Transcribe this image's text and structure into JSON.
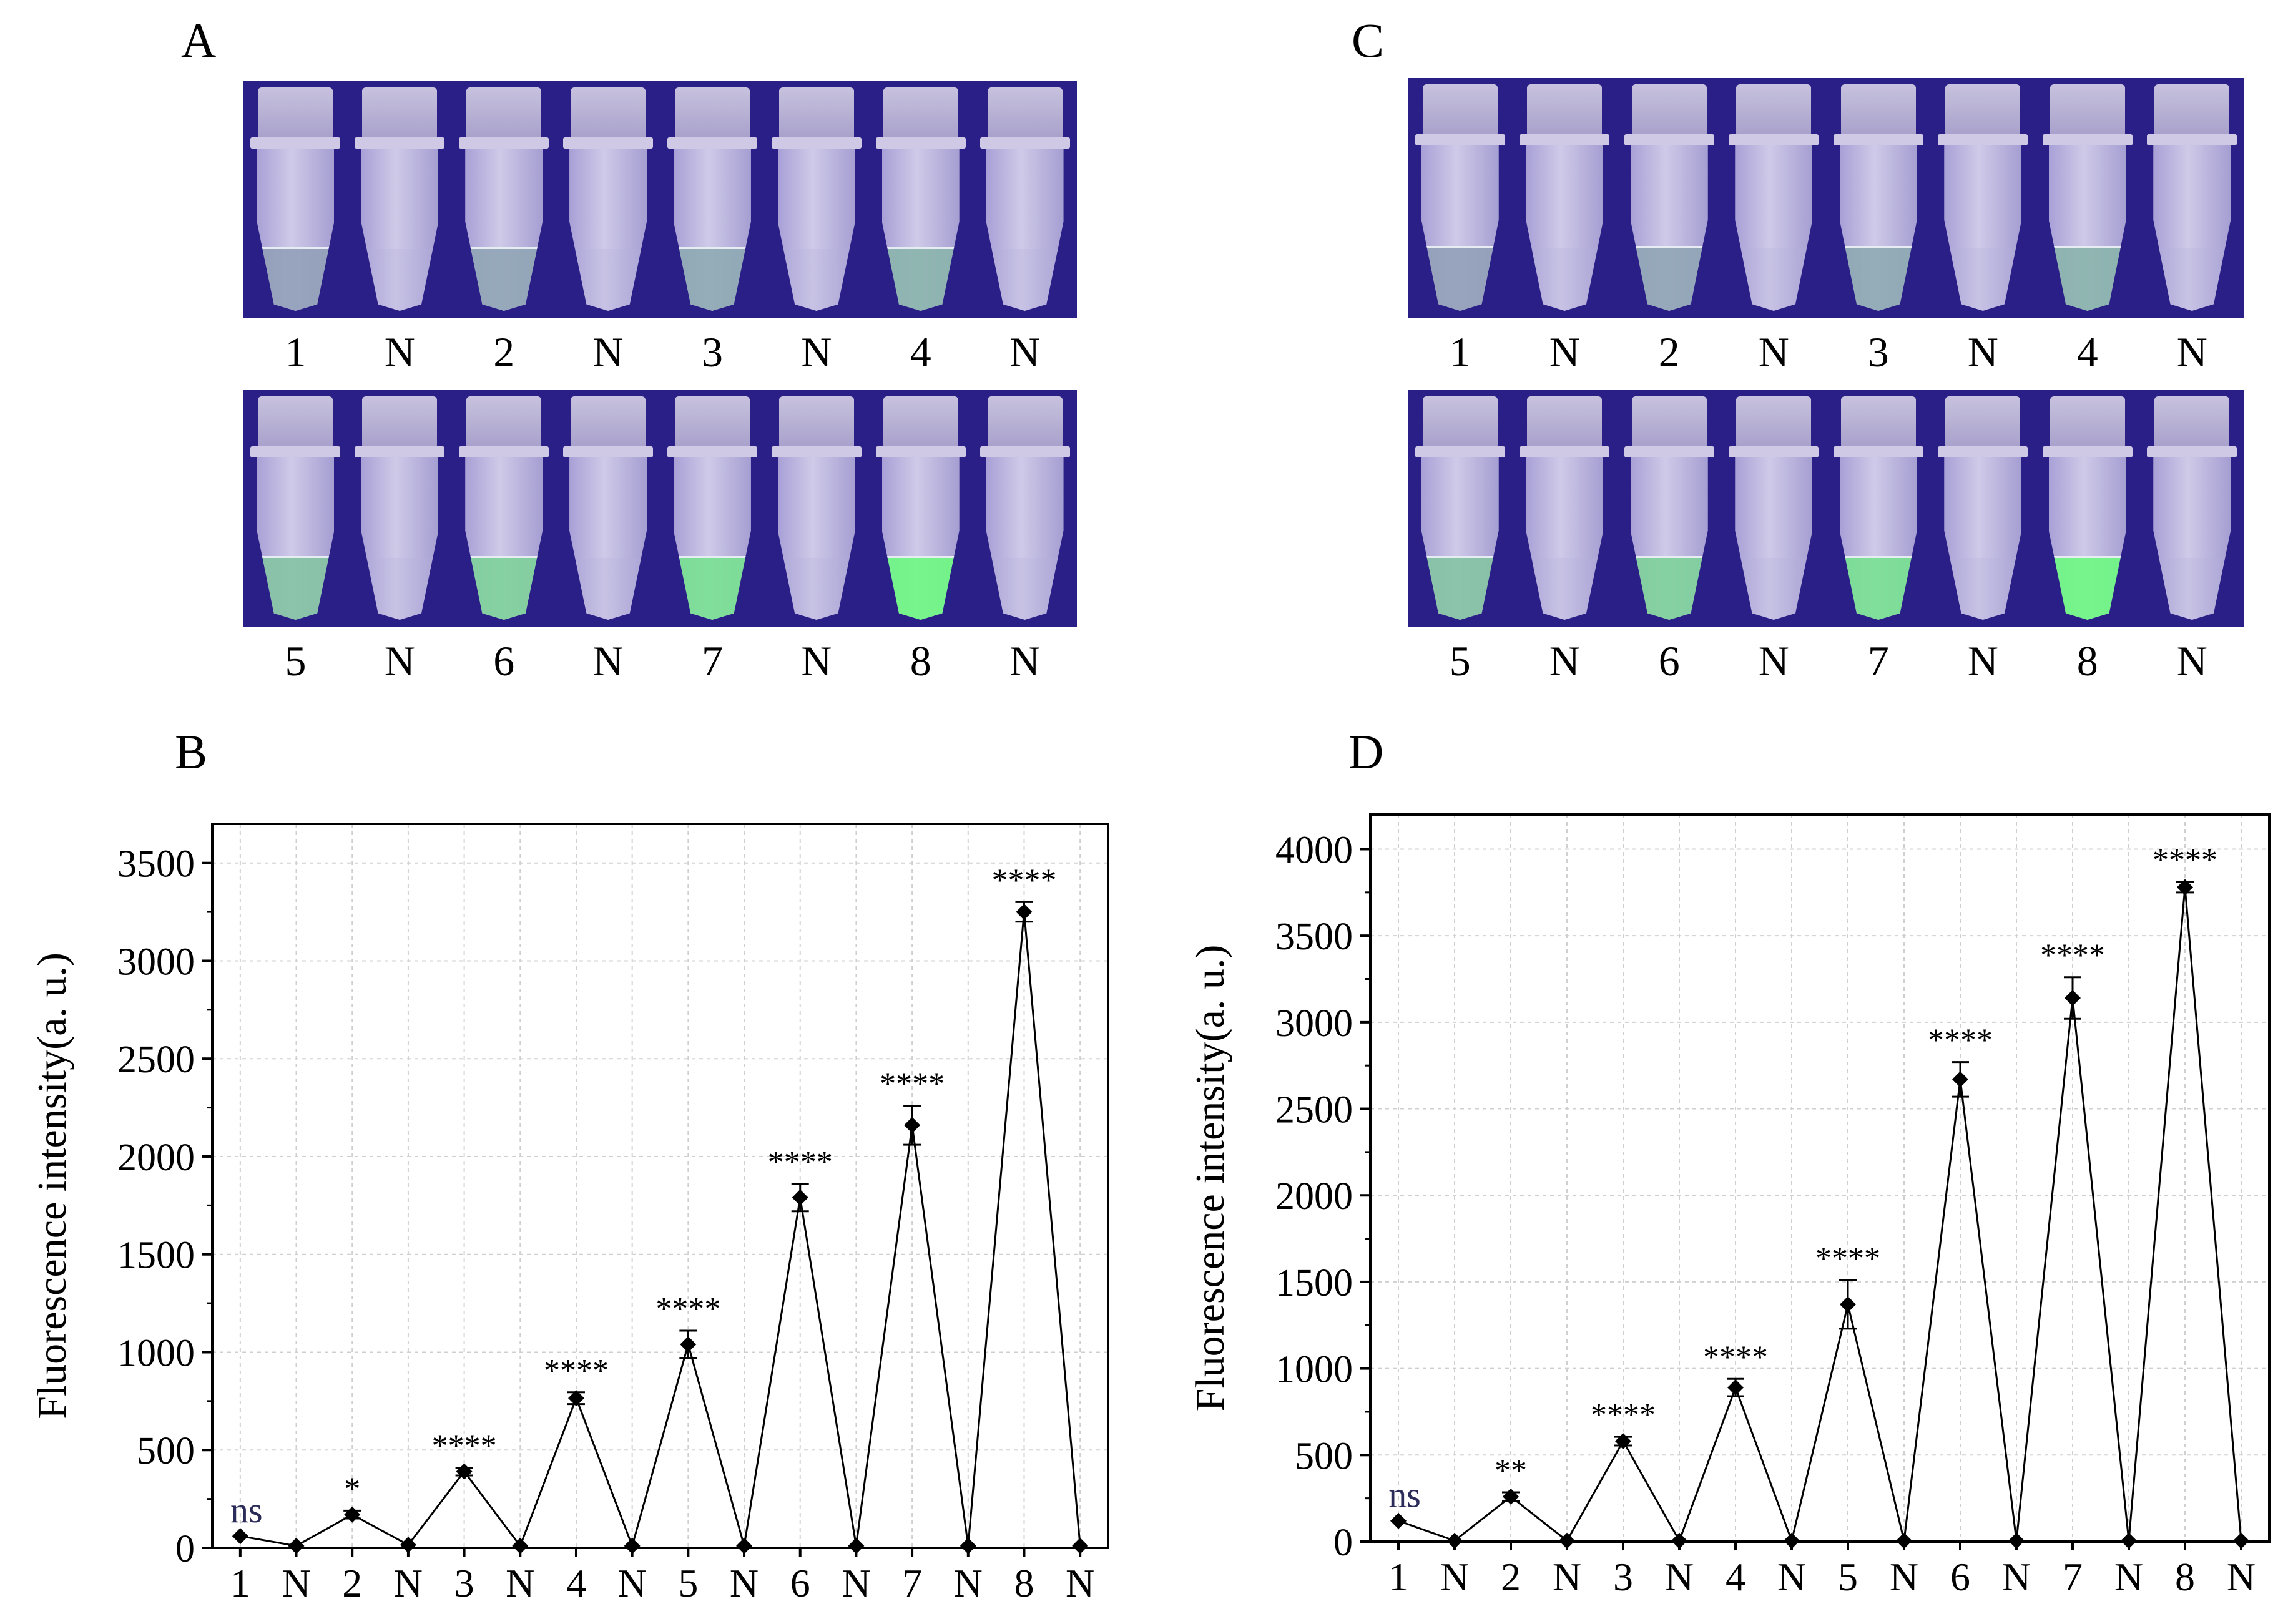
{
  "panels": {
    "A": "A",
    "B": "B",
    "C": "C",
    "D": "D"
  },
  "photo_colors": {
    "background": "#2a1f87",
    "negative": "#b4aedc",
    "positive_dim": "#b8c9d6",
    "positive_bright": "#7df08f"
  },
  "photoA": {
    "top_labels": [
      "1",
      "N",
      "2",
      "N",
      "3",
      "N",
      "4",
      "N"
    ],
    "bottom_labels": [
      "5",
      "N",
      "6",
      "N",
      "7",
      "N",
      "8",
      "N"
    ]
  },
  "photoC": {
    "top_labels": [
      "1",
      "N",
      "2",
      "N",
      "3",
      "N",
      "4",
      "N"
    ],
    "bottom_labels": [
      "5",
      "N",
      "6",
      "N",
      "7",
      "N",
      "8",
      "N"
    ]
  },
  "chart_data": [
    {
      "type": "line",
      "panel": "B",
      "ylabel": "Fluorescence intensity(a. u.)",
      "xlabel": "",
      "categories": [
        "1",
        "N",
        "2",
        "N",
        "3",
        "N",
        "4",
        "N",
        "5",
        "N",
        "6",
        "N",
        "7",
        "N",
        "8",
        "N"
      ],
      "values": [
        60,
        10,
        170,
        15,
        390,
        10,
        765,
        10,
        1040,
        10,
        1790,
        10,
        2160,
        10,
        3250,
        10
      ],
      "errors": [
        0,
        0,
        20,
        0,
        20,
        0,
        30,
        0,
        70,
        0,
        70,
        0,
        100,
        0,
        50,
        0
      ],
      "annotations": [
        "ns",
        "",
        "*",
        "",
        "****",
        "",
        "****",
        "",
        "****",
        "",
        "****",
        "",
        "****",
        "",
        "****",
        ""
      ],
      "yticks": [
        0,
        500,
        1000,
        1500,
        2000,
        2500,
        3000,
        3500
      ],
      "ytick_labels": [
        "0",
        "500",
        "1000",
        "1500",
        "2000",
        "2500",
        "3000",
        "3500"
      ],
      "ylim": [
        0,
        3700
      ],
      "grid": true
    },
    {
      "type": "line",
      "panel": "D",
      "ylabel": "Fluorescence intensity(a. u.)",
      "xlabel": "",
      "categories": [
        "1",
        "N",
        "2",
        "N",
        "3",
        "N",
        "4",
        "N",
        "5",
        "N",
        "6",
        "N",
        "7",
        "N",
        "8",
        "N"
      ],
      "values": [
        120,
        5,
        260,
        5,
        580,
        5,
        890,
        5,
        1370,
        5,
        2670,
        5,
        3140,
        5,
        3780,
        5
      ],
      "errors": [
        0,
        0,
        25,
        0,
        25,
        0,
        50,
        0,
        140,
        0,
        100,
        0,
        120,
        0,
        30,
        0
      ],
      "annotations": [
        "ns",
        "",
        "**",
        "",
        "****",
        "",
        "****",
        "",
        "****",
        "",
        "****",
        "",
        "****",
        "",
        "****",
        ""
      ],
      "yticks": [
        0,
        500,
        1000,
        1500,
        2000,
        2500,
        3000,
        3500,
        4000
      ],
      "ytick_labels": [
        "0",
        "500",
        "1000",
        "1500",
        "2000",
        "2500",
        "3000",
        "3500",
        "4000"
      ],
      "ylim": [
        0,
        4200
      ],
      "grid": true
    }
  ]
}
